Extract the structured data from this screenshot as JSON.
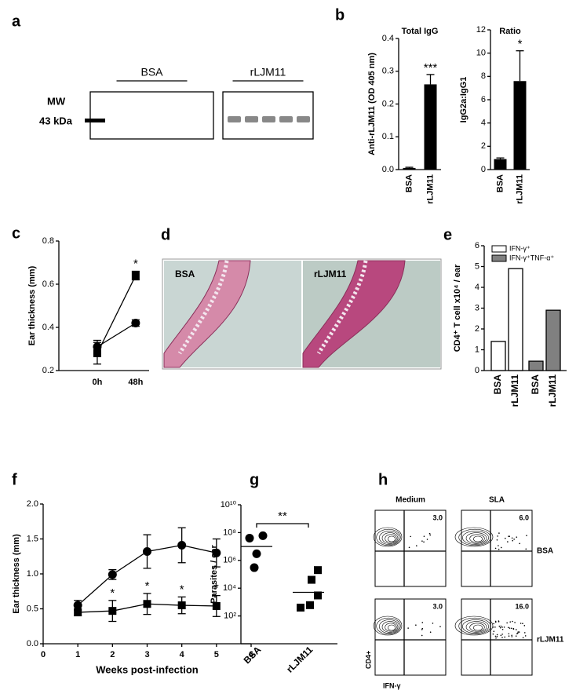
{
  "chart_data": [
    {
      "type": "gel",
      "panel": "a",
      "lanes": [
        "BSA",
        "rLJM11"
      ],
      "marker": "MW",
      "marker_size": "43 kDa"
    },
    {
      "type": "bar",
      "panel": "b",
      "title": "Total IgG",
      "ylabel": "Anti-rLJM11 (OD 405 nm)",
      "categories": [
        "BSA",
        "rLJM11"
      ],
      "values": [
        0.005,
        0.26
      ],
      "errors": [
        0.002,
        0.03
      ],
      "color": "#000000",
      "ylim": [
        0,
        0.4
      ],
      "yticks": [
        {
          "value": 0,
          "label": "0.0"
        },
        0.1,
        0.2,
        0.3,
        0.4
      ],
      "annotation": "***"
    },
    {
      "type": "bar",
      "title": "Ratio",
      "ylabel": "IgG2a:IgG1",
      "categories": [
        "BSA",
        "rLJM11"
      ],
      "values": [
        0.9,
        7.6
      ],
      "errors": [
        0.1,
        2.6
      ],
      "color": "#000000",
      "ylim": [
        0,
        12
      ],
      "yticks": [
        0,
        2,
        4,
        6,
        8,
        10,
        12
      ],
      "annotation": "*"
    },
    {
      "type": "line",
      "panel": "c",
      "ylabel": "Ear thickness (mm)",
      "categories": [
        "0h",
        "48h"
      ],
      "series": [
        {
          "marker": "square",
          "color": "#000000",
          "values": [
            0.28,
            0.64
          ],
          "errors": [
            0.05,
            0.02
          ],
          "annotations": [
            null,
            "*"
          ]
        },
        {
          "marker": "circle",
          "color": "#000000",
          "values": [
            0.31,
            0.42
          ],
          "errors": [
            0.03,
            0.015
          ]
        }
      ],
      "ylim": [
        0.2,
        0.8
      ],
      "yticks": [
        0.2,
        0.4,
        0.6,
        0.8
      ]
    },
    {
      "type": "image",
      "panel": "d",
      "labels": [
        "BSA",
        "rLJM11"
      ]
    },
    {
      "type": "grouped_bar",
      "panel": "e",
      "ylabel": "CD4⁺ T cell x10⁴ / ear",
      "categories": [
        "BSA",
        "rLJM11"
      ],
      "series": [
        {
          "name": "IFN-γ⁺",
          "color": "#ffffff",
          "values": [
            1.4,
            4.9
          ]
        },
        {
          "name": "IFN-γ⁺TNF-α⁺",
          "color": "#808080",
          "values": [
            0.45,
            2.9
          ]
        }
      ],
      "ylim": [
        0,
        6
      ],
      "yticks": [
        0,
        1,
        2,
        3,
        4,
        5,
        6
      ],
      "legend": "top-left"
    },
    {
      "type": "line",
      "panel": "f",
      "xlabel": "Weeks post-infection",
      "ylabel": "Ear thickness (mm)",
      "x": [
        1,
        2,
        3,
        4,
        5
      ],
      "xlim": [
        0,
        6
      ],
      "xticks": [
        0,
        1,
        2,
        3,
        4,
        5,
        6
      ],
      "series": [
        {
          "marker": "circle",
          "color": "#000000",
          "values": [
            0.55,
            0.99,
            1.32,
            1.41,
            1.3
          ],
          "errors": [
            0.07,
            0.07,
            0.24,
            0.25,
            0.2
          ]
        },
        {
          "marker": "square",
          "color": "#000000",
          "values": [
            0.45,
            0.47,
            0.57,
            0.55,
            0.54
          ],
          "errors": [
            0.05,
            0.15,
            0.15,
            0.12,
            0.15
          ],
          "annotations": [
            null,
            "*",
            "*",
            "*",
            "*"
          ]
        }
      ],
      "ylim": [
        0,
        2
      ],
      "yticks": [
        {
          "value": 0,
          "label": "0.0"
        },
        0.5,
        {
          "value": 1,
          "label": "1.0"
        },
        1.5,
        {
          "value": 2,
          "label": "2.0"
        }
      ]
    },
    {
      "type": "scatter",
      "panel": "g",
      "ylabel": "Parasites / ear",
      "categories": [
        "BSA",
        "rLJM11"
      ],
      "groups": [
        {
          "marker": "circle",
          "values": [
            40000000,
            60000000,
            3000000,
            300000
          ],
          "mean": 10000000
        },
        {
          "marker": "square",
          "values": [
            200000,
            40000,
            3000,
            400,
            600
          ],
          "mean": 5000
        }
      ],
      "log": true,
      "ylim": [
        1,
        10000000000
      ],
      "yticks": [
        {
          "value": 100,
          "label": "10²"
        },
        {
          "value": 10000,
          "label": "10⁴"
        },
        {
          "value": 1000000,
          "label": "10⁶"
        },
        {
          "value": 100000000,
          "label": "10⁸"
        },
        {
          "value": 10000000000,
          "label": "10¹⁰"
        }
      ],
      "annotation": "**"
    },
    {
      "type": "flow",
      "panel": "h",
      "columns": [
        "Medium",
        "SLA"
      ],
      "rows": [
        "BSA",
        "rLJM11"
      ],
      "values": [
        3.0,
        6.0,
        3.0,
        16.0
      ],
      "value_labels": [
        "3.0",
        "6.0",
        "3.0",
        "16.0"
      ],
      "xlabel": "IFN-γ",
      "ylabel": "CD4+"
    }
  ]
}
